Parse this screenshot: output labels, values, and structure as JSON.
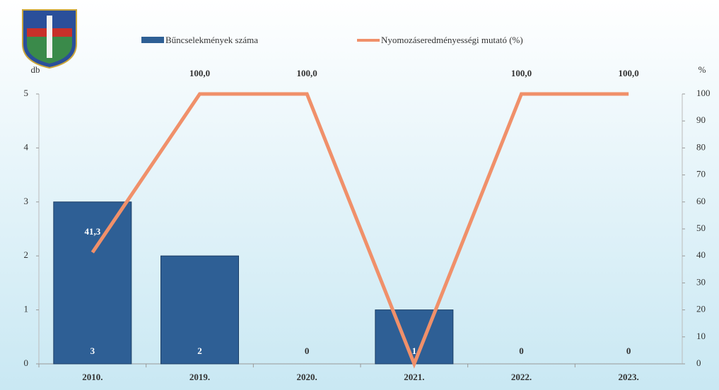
{
  "chart_data": {
    "type": "bar-line",
    "categories": [
      "2010.",
      "2019.",
      "2020.",
      "2021.",
      "2022.",
      "2023."
    ],
    "series": [
      {
        "name": "Bűncselekmények száma",
        "type": "bar",
        "color": "#2e5f95",
        "values": [
          3,
          2,
          0,
          1,
          0,
          0
        ]
      },
      {
        "name": "Nyomozáseredményességi mutató (%)",
        "type": "line",
        "axis": "y2",
        "color": "#f0906a",
        "values": [
          41.3,
          100,
          100,
          0,
          100,
          100
        ],
        "value_labels": [
          "41,3",
          "100,0",
          "100,0",
          null,
          "100,0",
          "100,0"
        ]
      }
    ],
    "y_label": "db",
    "y2_label": "%",
    "ylim": [
      0,
      5
    ],
    "yticks": [
      0,
      1,
      2,
      3,
      4,
      5
    ],
    "y2lim": [
      0,
      100
    ],
    "y2ticks": [
      0,
      10,
      20,
      30,
      40,
      50,
      60,
      70,
      80,
      90,
      100
    ],
    "legend": "top"
  }
}
